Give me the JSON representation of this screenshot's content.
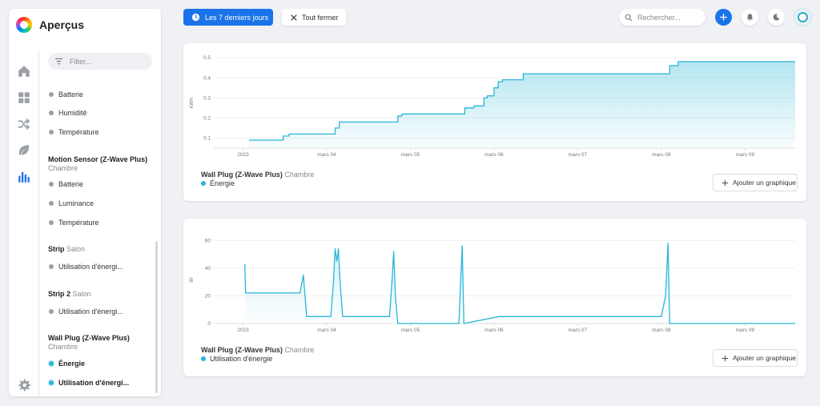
{
  "app": {
    "title": "Aperçus"
  },
  "filter": {
    "placeholder": "Filter..."
  },
  "sidebar": {
    "nav": [
      "home-icon",
      "dashboard-icon",
      "shuffle-icon",
      "leaf-icon",
      "bar-chart-icon"
    ],
    "groups": [
      {
        "name": "",
        "area": "",
        "items": [
          "Batterie",
          "Humidité",
          "Température"
        ]
      },
      {
        "name": "Motion Sensor (Z-Wave Plus)",
        "area": "Chambre",
        "items": [
          "Batterie",
          "Luminance",
          "Température"
        ]
      },
      {
        "name": "Strip",
        "area": "Salon",
        "items": [
          "Utilisation d'énergi..."
        ]
      },
      {
        "name": "Strip 2",
        "area": "Salon",
        "items": [
          "Utilisation d'énergi..."
        ]
      },
      {
        "name": "Wall Plug (Z-Wave Plus)",
        "area": "Chambre",
        "items": [
          "Énergie",
          "Utilisation d'énergi..."
        ]
      }
    ]
  },
  "toolbar": {
    "range_label": "Les 7 derniers jours",
    "close_all_label": "Tout fermer",
    "search_placeholder": "Rechercher..."
  },
  "colors": {
    "accent": "#1a73e8",
    "series": "#29b6d8"
  },
  "cards": [
    {
      "device": "Wall Plug (Z-Wave Plus)",
      "room": "Chambre",
      "legend": "Énergie",
      "add_label": "Ajouter un graphique"
    },
    {
      "device": "Wall Plug (Z-Wave Plus)",
      "room": "Chambre",
      "legend": "Utilisation d'énergie",
      "add_label": "Ajouter un graphique"
    }
  ],
  "chart_data": [
    {
      "type": "area",
      "title": "",
      "ylabel": "kWh",
      "ylim": [
        0.05,
        0.5
      ],
      "yticks": [
        0.1,
        0.2,
        0.3,
        0.4,
        0.5
      ],
      "xticks": [
        "2023",
        "mars 04",
        "mars 05",
        "mars 06",
        "mars 07",
        "mars 08",
        "mars 09"
      ],
      "xlim": [
        -0.35,
        6.6
      ],
      "grid": true,
      "series": [
        {
          "name": "Énergie",
          "x": [
            0.07,
            0.45,
            0.48,
            0.52,
            0.55,
            1.05,
            1.1,
            1.15,
            1.8,
            1.85,
            1.9,
            2.6,
            2.65,
            2.7,
            2.76,
            2.82,
            2.88,
            2.92,
            2.96,
            3.0,
            3.05,
            3.1,
            3.28,
            3.35,
            5.0,
            5.1,
            5.2,
            6.6
          ],
          "values": [
            0.09,
            0.09,
            0.11,
            0.11,
            0.12,
            0.12,
            0.15,
            0.18,
            0.18,
            0.21,
            0.22,
            0.22,
            0.25,
            0.25,
            0.26,
            0.26,
            0.3,
            0.31,
            0.31,
            0.35,
            0.38,
            0.39,
            0.39,
            0.42,
            0.42,
            0.46,
            0.48,
            0.48
          ]
        }
      ]
    },
    {
      "type": "line",
      "title": "",
      "ylabel": "W",
      "ylim": [
        0,
        63
      ],
      "yticks": [
        0,
        20,
        40,
        60
      ],
      "xticks": [
        "2023",
        "mars 04",
        "mars 05",
        "mars 06",
        "mars 07",
        "mars 08",
        "mars 09"
      ],
      "xlim": [
        -0.35,
        6.6
      ],
      "grid": true,
      "series": [
        {
          "name": "Utilisation d'énergie",
          "x": [
            0.02,
            0.03,
            0.05,
            0.68,
            0.72,
            0.76,
            0.8,
            1.05,
            1.08,
            1.1,
            1.12,
            1.14,
            1.16,
            1.19,
            1.22,
            1.75,
            1.78,
            1.8,
            1.82,
            1.85,
            2.58,
            2.6,
            2.62,
            2.64,
            3.06,
            3.1,
            3.2,
            3.3,
            3.4,
            5.0,
            5.05,
            5.08,
            5.1,
            6.6
          ],
          "values": [
            43,
            22,
            22,
            22,
            35,
            5,
            5,
            5,
            30,
            54,
            45,
            54,
            30,
            5,
            5,
            5,
            30,
            52,
            20,
            0,
            0,
            30,
            56,
            0,
            5,
            5,
            5,
            5,
            5,
            5,
            20,
            58,
            0,
            0
          ]
        }
      ]
    }
  ]
}
